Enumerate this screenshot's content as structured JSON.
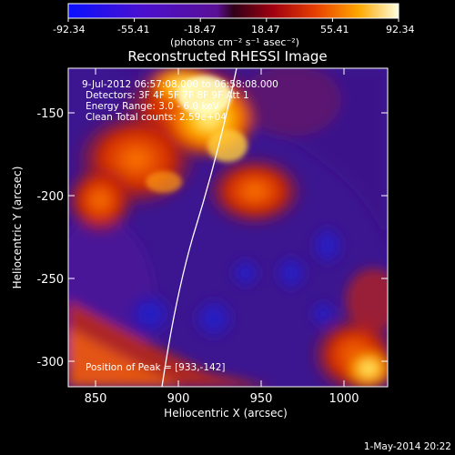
{
  "colorbar": {
    "ticks": [
      "-92.34",
      "-55.41",
      "-18.47",
      "18.47",
      "55.41",
      "92.34"
    ],
    "unit_label": "(photons cm⁻² s⁻¹ asec⁻²)",
    "range": [
      -92.34,
      92.34
    ]
  },
  "title": "Reconstructed RHESSI Image",
  "info": {
    "time": "9-Jul-2012 06:57:08.000 to 06:58:08.000",
    "detectors": "Detectors: 3F 4F 5F 7F 8F 9F  Att 1",
    "energy": "Energy Range: 3.0 - 6.0 keV",
    "method": "Clean     Total counts: 2.59e+04"
  },
  "peak": "Position of Peak = [933,-142]",
  "x_axis": {
    "label": "Heliocentric X (arcsec)",
    "ticks": [
      "850",
      "900",
      "950",
      "1000"
    ],
    "range": [
      833,
      1025
    ]
  },
  "y_axis": {
    "label": "Heliocentric Y (arcsec)",
    "ticks": [
      "-150",
      "-200",
      "-250",
      "-300"
    ],
    "range": [
      -314,
      -121
    ]
  },
  "footer": {
    "date": "1-May-2014 20:22"
  }
}
